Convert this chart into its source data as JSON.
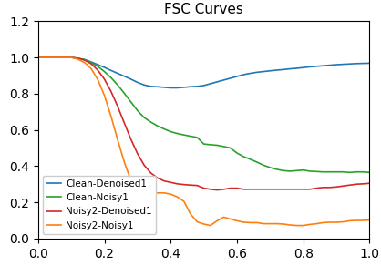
{
  "title": "FSC Curves",
  "xlim": [
    0.0,
    1.0
  ],
  "ylim": [
    0.0,
    1.2
  ],
  "yticks": [
    0.0,
    0.2,
    0.4,
    0.6,
    0.8,
    1.0,
    1.2
  ],
  "xticks": [
    0.0,
    0.2,
    0.4,
    0.6,
    0.8,
    1.0
  ],
  "legend_labels": [
    "Clean-Denoised1",
    "Clean-Noisy1",
    "Noisy2-Denoised1",
    "Noisy2-Noisy1"
  ],
  "line_colors": [
    "#1f77b4",
    "#2ca02c",
    "#d62728",
    "#ff7f0e"
  ],
  "title_fontsize": 11,
  "legend_fontsize": 7.5,
  "curves": {
    "clean_denoised1": [
      [
        0.0,
        1.0
      ],
      [
        0.02,
        1.0
      ],
      [
        0.04,
        1.0
      ],
      [
        0.06,
        1.0
      ],
      [
        0.08,
        1.0
      ],
      [
        0.1,
        1.0
      ],
      [
        0.12,
        0.995
      ],
      [
        0.14,
        0.988
      ],
      [
        0.16,
        0.975
      ],
      [
        0.18,
        0.96
      ],
      [
        0.2,
        0.945
      ],
      [
        0.22,
        0.928
      ],
      [
        0.24,
        0.912
      ],
      [
        0.26,
        0.896
      ],
      [
        0.28,
        0.88
      ],
      [
        0.3,
        0.862
      ],
      [
        0.32,
        0.848
      ],
      [
        0.34,
        0.84
      ],
      [
        0.36,
        0.838
      ],
      [
        0.38,
        0.835
      ],
      [
        0.4,
        0.832
      ],
      [
        0.42,
        0.832
      ],
      [
        0.44,
        0.835
      ],
      [
        0.46,
        0.838
      ],
      [
        0.48,
        0.84
      ],
      [
        0.5,
        0.845
      ],
      [
        0.52,
        0.855
      ],
      [
        0.54,
        0.865
      ],
      [
        0.56,
        0.875
      ],
      [
        0.58,
        0.885
      ],
      [
        0.6,
        0.895
      ],
      [
        0.62,
        0.905
      ],
      [
        0.64,
        0.912
      ],
      [
        0.66,
        0.918
      ],
      [
        0.68,
        0.922
      ],
      [
        0.7,
        0.926
      ],
      [
        0.72,
        0.93
      ],
      [
        0.74,
        0.933
      ],
      [
        0.76,
        0.937
      ],
      [
        0.78,
        0.94
      ],
      [
        0.8,
        0.944
      ],
      [
        0.82,
        0.948
      ],
      [
        0.84,
        0.951
      ],
      [
        0.86,
        0.954
      ],
      [
        0.88,
        0.957
      ],
      [
        0.9,
        0.96
      ],
      [
        0.92,
        0.962
      ],
      [
        0.94,
        0.964
      ],
      [
        0.96,
        0.966
      ],
      [
        0.98,
        0.967
      ],
      [
        1.0,
        0.968
      ]
    ],
    "clean_noisy1": [
      [
        0.0,
        1.0
      ],
      [
        0.02,
        1.0
      ],
      [
        0.04,
        1.0
      ],
      [
        0.06,
        1.0
      ],
      [
        0.08,
        1.0
      ],
      [
        0.1,
        1.0
      ],
      [
        0.12,
        0.995
      ],
      [
        0.14,
        0.988
      ],
      [
        0.16,
        0.972
      ],
      [
        0.18,
        0.95
      ],
      [
        0.2,
        0.922
      ],
      [
        0.22,
        0.888
      ],
      [
        0.24,
        0.848
      ],
      [
        0.26,
        0.802
      ],
      [
        0.28,
        0.754
      ],
      [
        0.3,
        0.706
      ],
      [
        0.32,
        0.668
      ],
      [
        0.34,
        0.643
      ],
      [
        0.36,
        0.622
      ],
      [
        0.38,
        0.605
      ],
      [
        0.4,
        0.59
      ],
      [
        0.42,
        0.58
      ],
      [
        0.44,
        0.572
      ],
      [
        0.46,
        0.565
      ],
      [
        0.48,
        0.558
      ],
      [
        0.5,
        0.522
      ],
      [
        0.52,
        0.518
      ],
      [
        0.54,
        0.515
      ],
      [
        0.56,
        0.508
      ],
      [
        0.58,
        0.5
      ],
      [
        0.6,
        0.472
      ],
      [
        0.62,
        0.452
      ],
      [
        0.64,
        0.438
      ],
      [
        0.66,
        0.422
      ],
      [
        0.68,
        0.405
      ],
      [
        0.7,
        0.392
      ],
      [
        0.72,
        0.382
      ],
      [
        0.74,
        0.375
      ],
      [
        0.76,
        0.372
      ],
      [
        0.78,
        0.375
      ],
      [
        0.8,
        0.378
      ],
      [
        0.82,
        0.372
      ],
      [
        0.84,
        0.37
      ],
      [
        0.86,
        0.368
      ],
      [
        0.88,
        0.368
      ],
      [
        0.9,
        0.368
      ],
      [
        0.92,
        0.368
      ],
      [
        0.94,
        0.365
      ],
      [
        0.96,
        0.368
      ],
      [
        0.98,
        0.368
      ],
      [
        1.0,
        0.365
      ]
    ],
    "noisy2_denoised1": [
      [
        0.0,
        1.0
      ],
      [
        0.02,
        1.0
      ],
      [
        0.04,
        1.0
      ],
      [
        0.06,
        1.0
      ],
      [
        0.08,
        1.0
      ],
      [
        0.1,
        1.0
      ],
      [
        0.12,
        0.995
      ],
      [
        0.14,
        0.985
      ],
      [
        0.16,
        0.965
      ],
      [
        0.18,
        0.93
      ],
      [
        0.2,
        0.88
      ],
      [
        0.22,
        0.812
      ],
      [
        0.24,
        0.73
      ],
      [
        0.26,
        0.638
      ],
      [
        0.28,
        0.548
      ],
      [
        0.3,
        0.468
      ],
      [
        0.32,
        0.405
      ],
      [
        0.34,
        0.362
      ],
      [
        0.36,
        0.335
      ],
      [
        0.38,
        0.318
      ],
      [
        0.4,
        0.31
      ],
      [
        0.42,
        0.302
      ],
      [
        0.44,
        0.298
      ],
      [
        0.46,
        0.295
      ],
      [
        0.48,
        0.293
      ],
      [
        0.5,
        0.278
      ],
      [
        0.52,
        0.272
      ],
      [
        0.54,
        0.268
      ],
      [
        0.56,
        0.272
      ],
      [
        0.58,
        0.278
      ],
      [
        0.6,
        0.278
      ],
      [
        0.62,
        0.272
      ],
      [
        0.64,
        0.272
      ],
      [
        0.66,
        0.272
      ],
      [
        0.68,
        0.272
      ],
      [
        0.7,
        0.272
      ],
      [
        0.72,
        0.272
      ],
      [
        0.74,
        0.272
      ],
      [
        0.76,
        0.272
      ],
      [
        0.78,
        0.272
      ],
      [
        0.8,
        0.272
      ],
      [
        0.82,
        0.272
      ],
      [
        0.84,
        0.278
      ],
      [
        0.86,
        0.282
      ],
      [
        0.88,
        0.282
      ],
      [
        0.9,
        0.285
      ],
      [
        0.92,
        0.29
      ],
      [
        0.94,
        0.295
      ],
      [
        0.96,
        0.3
      ],
      [
        0.98,
        0.302
      ],
      [
        1.0,
        0.305
      ]
    ],
    "noisy2_noisy1": [
      [
        0.0,
        1.0
      ],
      [
        0.02,
        1.0
      ],
      [
        0.04,
        1.0
      ],
      [
        0.06,
        1.0
      ],
      [
        0.08,
        1.0
      ],
      [
        0.1,
        1.0
      ],
      [
        0.12,
        0.99
      ],
      [
        0.14,
        0.972
      ],
      [
        0.16,
        0.938
      ],
      [
        0.18,
        0.878
      ],
      [
        0.2,
        0.79
      ],
      [
        0.22,
        0.675
      ],
      [
        0.24,
        0.545
      ],
      [
        0.26,
        0.422
      ],
      [
        0.28,
        0.32
      ],
      [
        0.3,
        0.26
      ],
      [
        0.32,
        0.25
      ],
      [
        0.34,
        0.25
      ],
      [
        0.36,
        0.252
      ],
      [
        0.38,
        0.252
      ],
      [
        0.4,
        0.245
      ],
      [
        0.42,
        0.23
      ],
      [
        0.44,
        0.205
      ],
      [
        0.46,
        0.135
      ],
      [
        0.48,
        0.092
      ],
      [
        0.5,
        0.08
      ],
      [
        0.52,
        0.072
      ],
      [
        0.54,
        0.098
      ],
      [
        0.56,
        0.118
      ],
      [
        0.58,
        0.108
      ],
      [
        0.6,
        0.098
      ],
      [
        0.62,
        0.09
      ],
      [
        0.64,
        0.088
      ],
      [
        0.66,
        0.088
      ],
      [
        0.68,
        0.082
      ],
      [
        0.7,
        0.082
      ],
      [
        0.72,
        0.082
      ],
      [
        0.74,
        0.08
      ],
      [
        0.76,
        0.075
      ],
      [
        0.78,
        0.072
      ],
      [
        0.8,
        0.072
      ],
      [
        0.82,
        0.078
      ],
      [
        0.84,
        0.082
      ],
      [
        0.86,
        0.088
      ],
      [
        0.88,
        0.09
      ],
      [
        0.9,
        0.09
      ],
      [
        0.92,
        0.092
      ],
      [
        0.94,
        0.098
      ],
      [
        0.96,
        0.1
      ],
      [
        0.98,
        0.1
      ],
      [
        1.0,
        0.102
      ]
    ]
  }
}
